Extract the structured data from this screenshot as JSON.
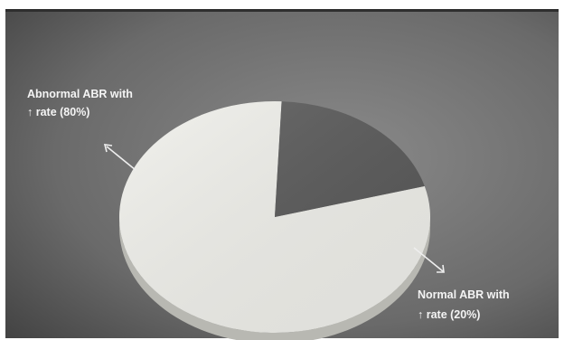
{
  "chart_data": {
    "type": "pie",
    "title": "",
    "slices": [
      {
        "line1": "Abnormal ABR with",
        "line2": "↑ rate  (80%)",
        "value": 80,
        "color": "#efefea",
        "side_color": "#b8b8b2"
      },
      {
        "line1": "Normal ABR with",
        "line2": "↑ rate  (20%)",
        "value": 20,
        "color": "#585858",
        "side_color": "#262626"
      }
    ],
    "legend": "none",
    "grid": false,
    "style": "3d-tilted-pie",
    "background_color": "#6f6f6f"
  }
}
